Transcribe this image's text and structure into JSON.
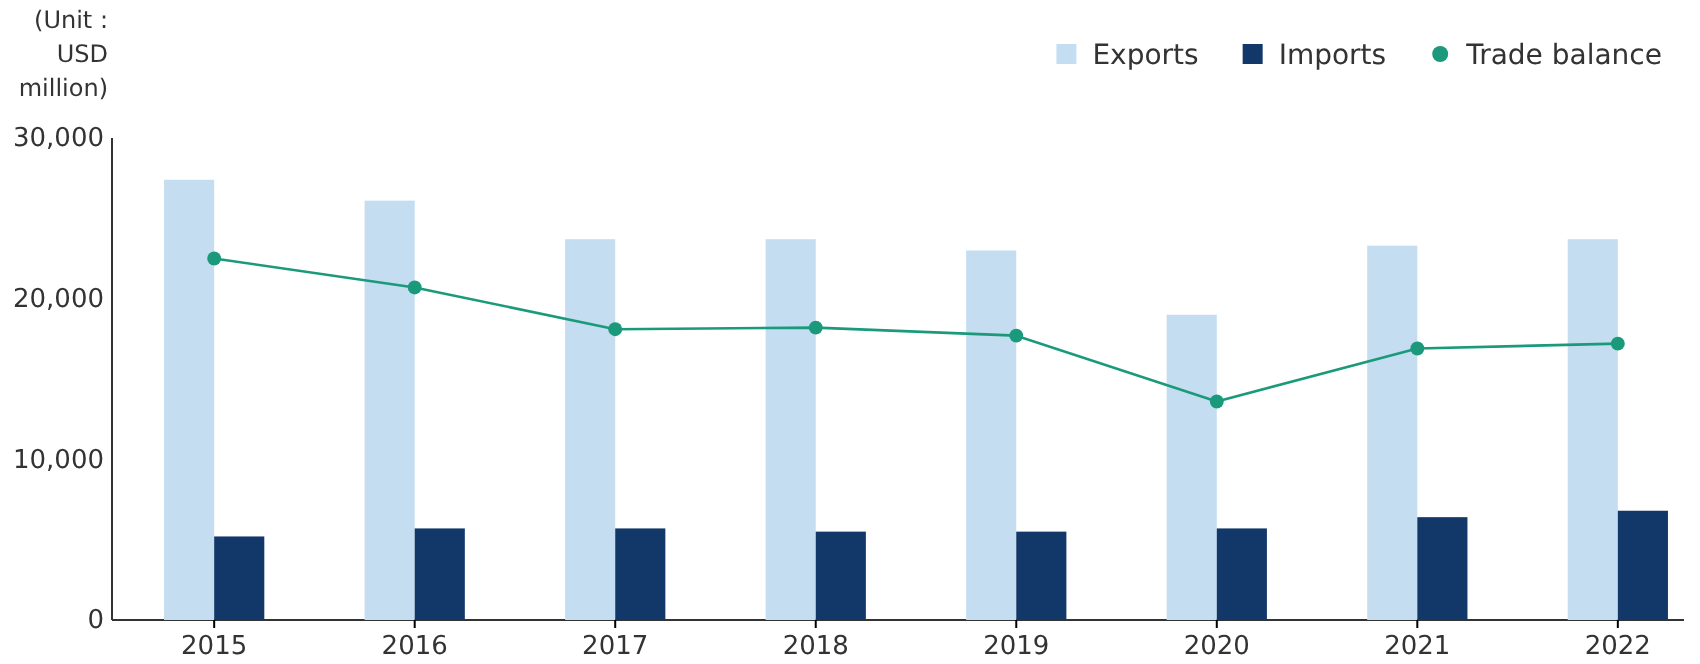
{
  "chart_data": {
    "type": "bar",
    "ylabel": "(Unit : USD million)",
    "categories": [
      "2015",
      "2016",
      "2017",
      "2018",
      "2019",
      "2020",
      "2021",
      "2022"
    ],
    "series": [
      {
        "name": "Exports",
        "color": "#c5ddf1",
        "values": [
          27400,
          26100,
          23700,
          23700,
          23000,
          19000,
          23300,
          23700
        ]
      },
      {
        "name": "Imports",
        "color": "#12386a",
        "values": [
          5200,
          5700,
          5700,
          5500,
          5500,
          5700,
          6400,
          6800
        ]
      },
      {
        "name": "Trade balance",
        "type": "line",
        "color": "#1a9a7a",
        "marker": "circle",
        "values": [
          22500,
          20700,
          18100,
          18200,
          17700,
          13600,
          16900,
          17200
        ]
      }
    ],
    "ylim": [
      0,
      30000
    ],
    "yticks": [
      0,
      {
        "value": 10000,
        "label": "10,000"
      },
      {
        "value": 20000,
        "label": "20,000"
      },
      {
        "value": 30000,
        "label": "30,000"
      }
    ],
    "legend": "top right"
  }
}
